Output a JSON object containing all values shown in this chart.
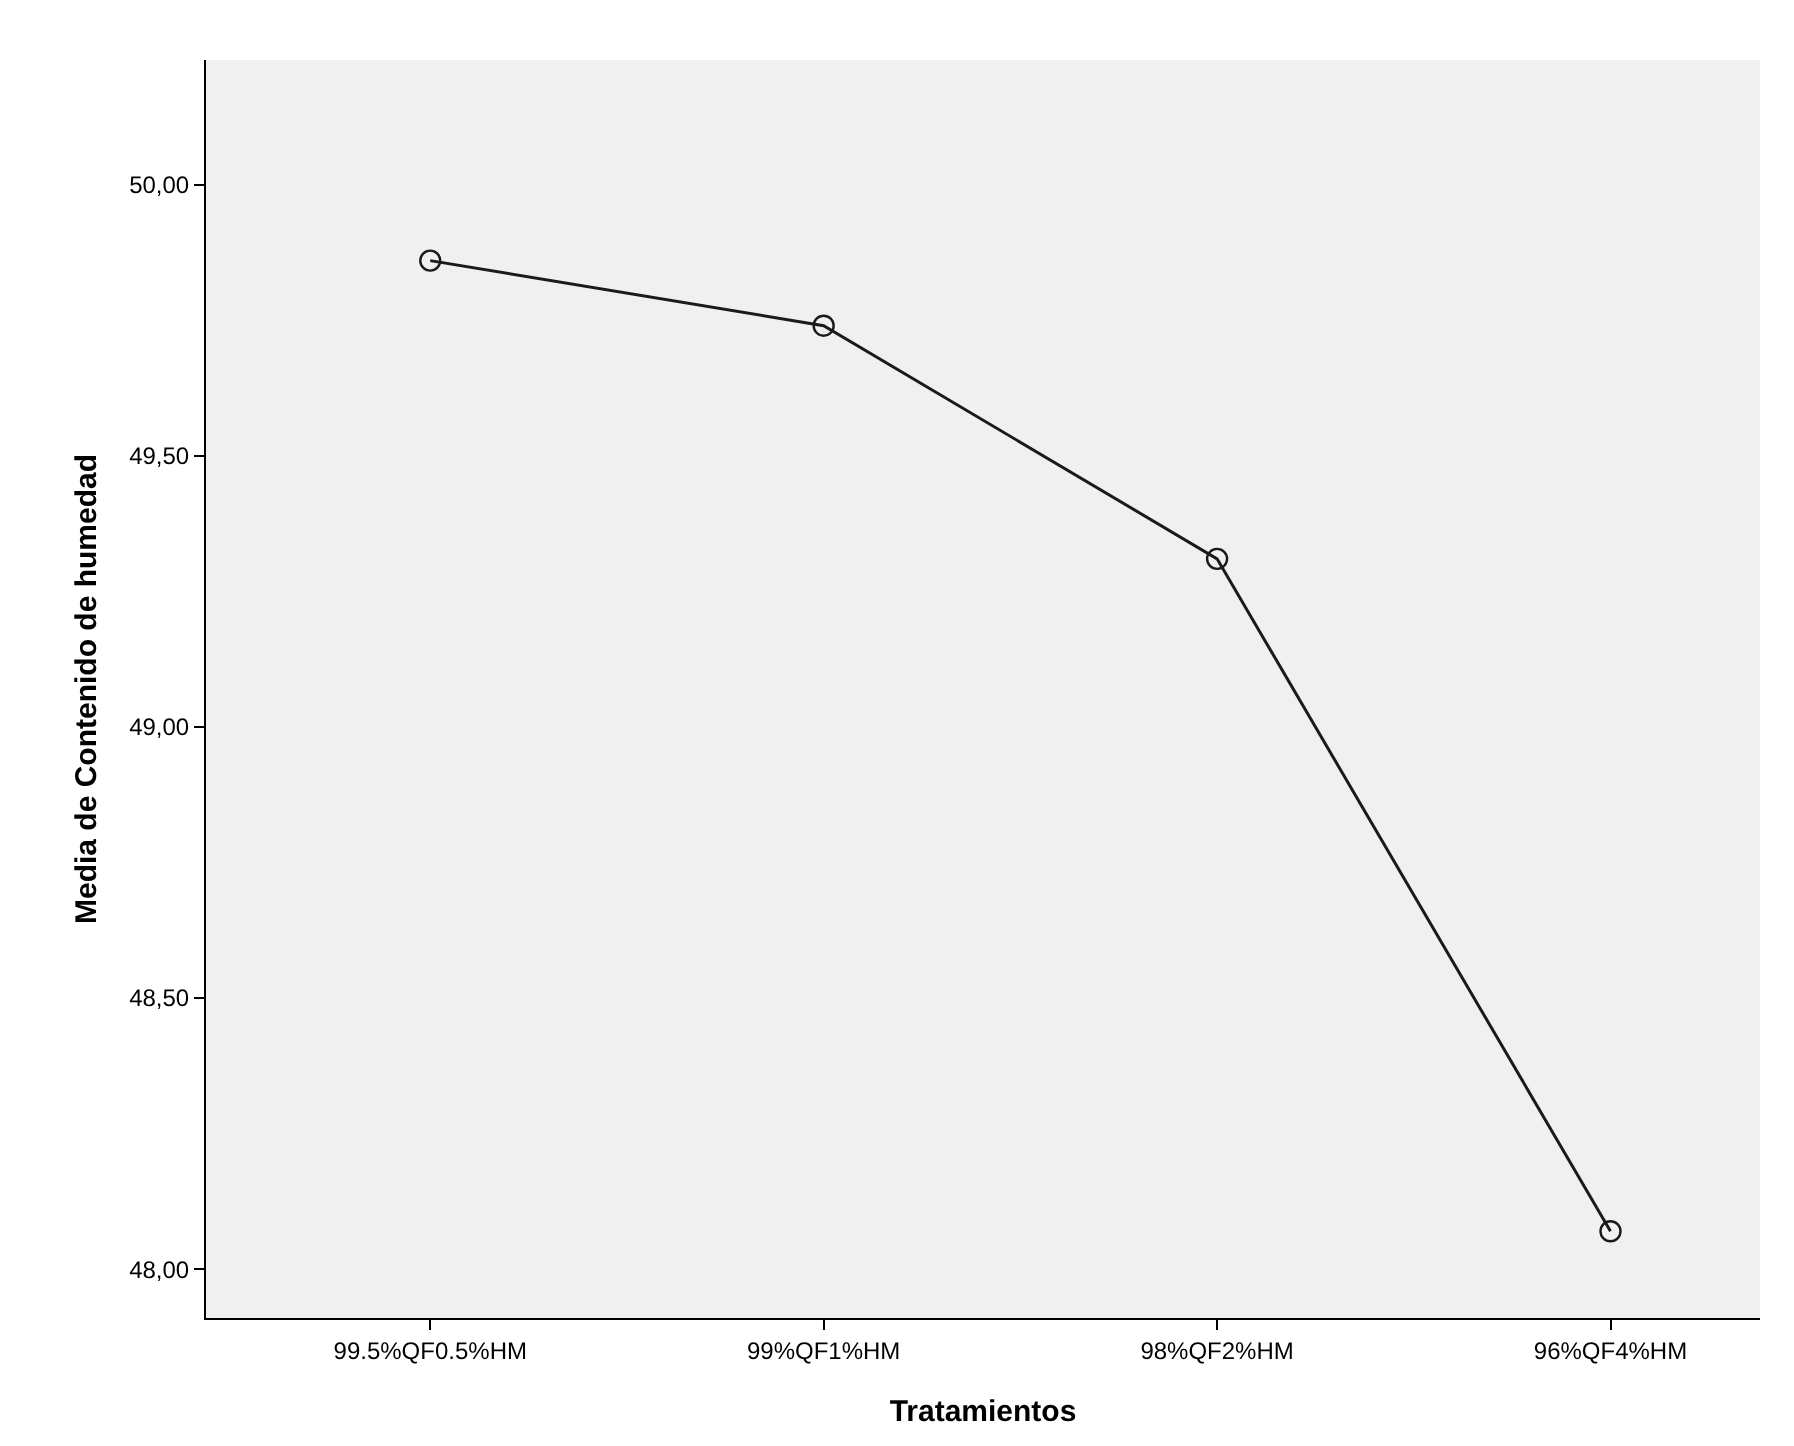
{
  "chart_data": {
    "type": "line",
    "xlabel": "Tratamientos",
    "ylabel": "Media de Contenido de humedad",
    "categories": [
      "99.5%QF0.5%HM",
      "99%QF1%HM",
      "98%QF2%HM",
      "96%QF4%HM"
    ],
    "values": [
      49.86,
      49.74,
      49.31,
      48.07
    ],
    "color": "#1a1a1a",
    "marker": "circle",
    "line_style": "solid",
    "grid": false,
    "legend": false,
    "ylim": [
      47.91,
      50.23
    ],
    "yticks": [
      {
        "value": 48,
        "label": "48,00"
      },
      {
        "value": 48.5,
        "label": "48,50"
      },
      {
        "value": 49,
        "label": "49,00"
      },
      {
        "value": 49.5,
        "label": "49,50"
      },
      {
        "value": 50,
        "label": "50,00"
      }
    ]
  }
}
